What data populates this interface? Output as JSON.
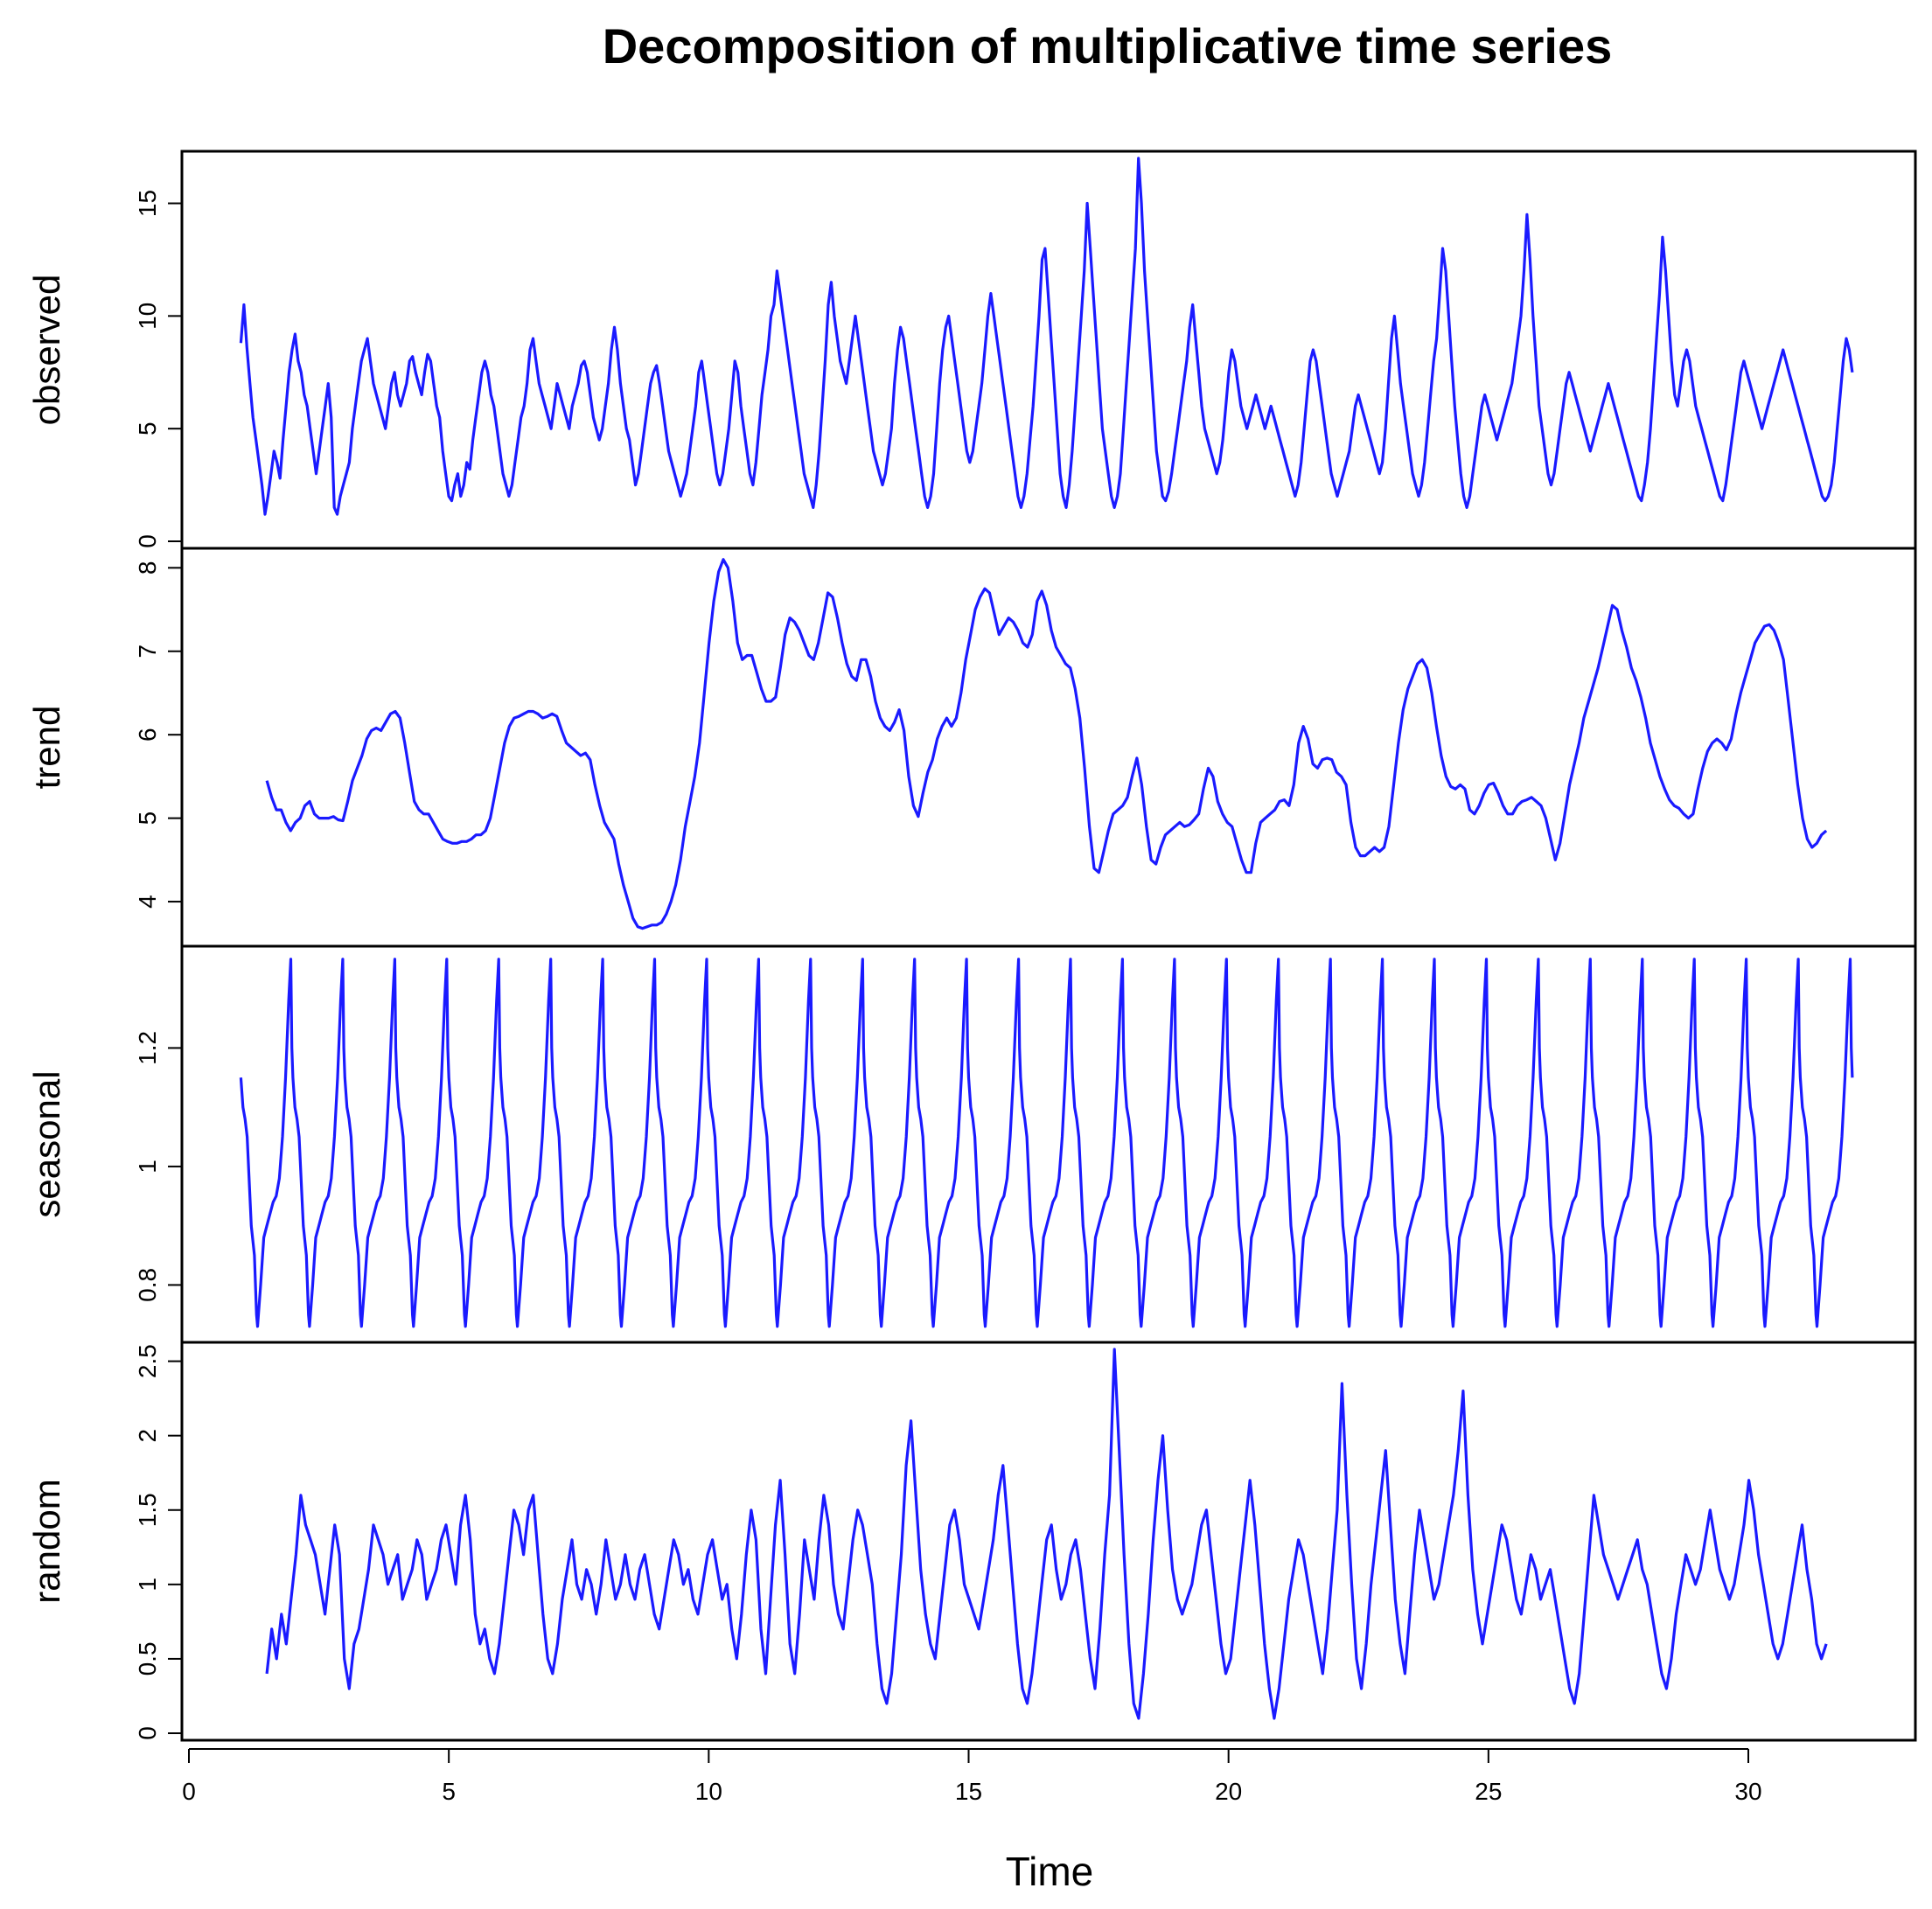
{
  "chart_data": {
    "type": "line",
    "title": "Decomposition of multiplicative time series",
    "xlabel": "Time",
    "xlim": [
      0,
      32
    ],
    "x_ticks": [
      0,
      5,
      10,
      15,
      20,
      25,
      30
    ],
    "line_color": "#1a1aff",
    "panels": [
      {
        "name": "observed",
        "ylabel": "observed",
        "ylim": [
          0,
          17
        ],
        "y_ticks": [
          0,
          5,
          10,
          15
        ],
        "x_start": 1.0,
        "x_end": 32.0,
        "step": 0.05,
        "values": [
          8.8,
          10.5,
          8.6,
          7,
          5.5,
          4.5,
          3.5,
          2.5,
          1.2,
          2,
          3,
          4,
          3.5,
          2.8,
          4.5,
          6,
          7.5,
          8.5,
          9.2,
          8,
          7.5,
          6.5,
          6,
          5,
          4,
          3,
          4,
          5,
          6,
          7,
          5.5,
          1.5,
          1.2,
          2,
          2.5,
          3,
          3.5,
          5,
          6,
          7,
          8,
          8.5,
          9,
          8,
          7,
          6.5,
          6,
          5.5,
          5,
          6,
          7,
          7.5,
          6.5,
          6,
          6.5,
          7,
          8,
          8.2,
          7.5,
          7,
          6.5,
          7.5,
          8.3,
          8,
          7,
          6,
          5.5,
          4,
          3,
          2,
          1.8,
          2.5,
          3,
          2,
          2.5,
          3.5,
          3.2,
          4.5,
          5.5,
          6.5,
          7.5,
          8,
          7.5,
          6.5,
          6,
          5,
          4,
          3,
          2.5,
          2,
          2.5,
          3.5,
          4.5,
          5.5,
          6,
          7,
          8.5,
          9,
          8,
          7,
          6.5,
          6,
          5.5,
          5,
          6,
          7,
          6.5,
          6,
          5.5,
          5,
          6,
          6.5,
          7,
          7.8,
          8,
          7.5,
          6.5,
          5.5,
          5,
          4.5,
          5,
          6,
          7,
          8.5,
          9.5,
          8.5,
          7,
          6,
          5,
          4.5,
          3.5,
          2.5,
          3,
          4,
          5,
          6,
          7,
          7.5,
          7.8,
          7,
          6,
          5,
          4,
          3.5,
          3,
          2.5,
          2,
          2.5,
          3,
          4,
          5,
          6,
          7.5,
          8,
          7,
          6,
          5,
          4,
          3,
          2.5,
          3,
          4,
          5,
          6.5,
          8,
          7.5,
          6,
          5,
          4,
          3,
          2.5,
          3.5,
          5,
          6.5,
          7.5,
          8.5,
          10,
          10.5,
          12,
          11,
          10,
          9,
          8,
          7,
          6,
          5,
          4,
          3,
          2.5,
          2,
          1.5,
          2.5,
          4,
          6,
          8,
          10.5,
          11.5,
          10,
          9,
          8,
          7.5,
          7,
          8,
          9,
          10,
          9,
          8,
          7,
          6,
          5,
          4,
          3.5,
          3,
          2.5,
          3,
          4,
          5,
          7,
          8.5,
          9.5,
          9,
          8,
          7,
          6,
          5,
          4,
          3,
          2,
          1.5,
          2,
          3,
          5,
          7,
          8.5,
          9.5,
          10,
          9,
          8,
          7,
          6,
          5,
          4,
          3.5,
          4,
          5,
          6,
          7,
          8.5,
          10,
          11,
          10,
          9,
          8,
          7,
          6,
          5,
          4,
          3,
          2,
          1.5,
          2,
          3,
          4.5,
          6,
          8,
          10,
          12.5,
          13,
          11,
          9,
          7,
          5,
          3,
          2,
          1.5,
          2.5,
          4,
          6,
          8,
          10,
          12,
          15,
          13,
          11,
          9,
          7,
          5,
          4,
          3,
          2,
          1.5,
          2,
          3,
          5,
          7,
          9,
          11,
          13,
          17,
          15,
          12,
          10,
          8,
          6,
          4,
          3,
          2,
          1.8,
          2.2,
          3,
          4,
          5,
          6,
          7,
          8,
          9.5,
          10.5,
          9,
          7.5,
          6,
          5,
          4.5,
          4,
          3.5,
          3,
          3.5,
          4.5,
          6,
          7.5,
          8.5,
          8,
          7,
          6,
          5.5,
          5,
          5.5,
          6,
          6.5,
          6,
          5.5,
          5,
          5.5,
          6,
          5.5,
          5,
          4.5,
          4,
          3.5,
          3,
          2.5,
          2,
          2.5,
          3.5,
          5,
          6.5,
          8,
          8.5,
          8,
          7,
          6,
          5,
          4,
          3,
          2.5,
          2,
          2.5,
          3,
          3.5,
          4,
          5,
          6,
          6.5,
          6,
          5.5,
          5,
          4.5,
          4,
          3.5,
          3,
          3.5,
          5,
          7,
          9,
          10,
          8.5,
          7,
          6,
          5,
          4,
          3,
          2.5,
          2,
          2.5,
          3.5,
          5,
          6.5,
          8,
          9,
          11,
          13,
          12,
          10,
          8,
          6,
          4.5,
          3,
          2,
          1.5,
          2,
          3,
          4,
          5,
          6,
          6.5,
          6,
          5.5,
          5,
          4.5,
          5,
          5.5,
          6,
          6.5,
          7,
          8,
          9,
          10,
          12,
          14.5,
          12.5,
          10,
          8,
          6,
          5,
          4,
          3,
          2.5,
          3,
          4,
          5,
          6,
          7,
          7.5,
          7,
          6.5,
          6,
          5.5,
          5,
          4.5,
          4,
          4.5,
          5,
          5.5,
          6,
          6.5,
          7,
          6.5,
          6,
          5.5,
          5,
          4.5,
          4,
          3.5,
          3,
          2.5,
          2,
          1.8,
          2.5,
          3.5,
          5,
          7,
          9,
          11,
          13.5,
          12,
          10,
          8,
          6.5,
          6,
          7,
          8,
          8.5,
          8,
          7,
          6,
          5.5,
          5,
          4.5,
          4,
          3.5,
          3,
          2.5,
          2,
          1.8,
          2.5,
          3.5,
          4.5,
          5.5,
          6.5,
          7.5,
          8,
          7.5,
          7,
          6.5,
          6,
          5.5,
          5,
          5.5,
          6,
          6.5,
          7,
          7.5,
          8,
          8.5,
          8,
          7.5,
          7,
          6.5,
          6,
          5.5,
          5,
          4.5,
          4,
          3.5,
          3,
          2.5,
          2,
          1.8,
          2,
          2.5,
          3.5,
          5,
          6.5,
          8,
          9,
          8.5,
          7.5
        ]
      },
      {
        "name": "trend",
        "ylabel": "trend",
        "ylim": [
          3.55,
          8.15
        ],
        "y_ticks": [
          4,
          5,
          6,
          7,
          8
        ],
        "x_start": 1.5,
        "x_end": 31.5,
        "step": 0.1,
        "values": [
          5.45,
          5.25,
          5.1,
          5.1,
          4.95,
          4.85,
          4.95,
          5,
          5.15,
          5.2,
          5.05,
          5,
          5,
          5,
          5.02,
          4.98,
          4.97,
          5.2,
          5.45,
          5.6,
          5.75,
          5.95,
          6.05,
          6.08,
          6.05,
          6.15,
          6.25,
          6.28,
          6.2,
          5.9,
          5.55,
          5.2,
          5.1,
          5.05,
          5.05,
          4.95,
          4.85,
          4.75,
          4.72,
          4.7,
          4.7,
          4.72,
          4.72,
          4.75,
          4.8,
          4.8,
          4.85,
          5,
          5.3,
          5.6,
          5.9,
          6.1,
          6.2,
          6.22,
          6.25,
          6.28,
          6.28,
          6.25,
          6.2,
          6.22,
          6.25,
          6.22,
          6.05,
          5.9,
          5.85,
          5.8,
          5.75,
          5.78,
          5.7,
          5.4,
          5.15,
          4.95,
          4.85,
          4.75,
          4.45,
          4.2,
          4,
          3.8,
          3.7,
          3.68,
          3.7,
          3.72,
          3.72,
          3.75,
          3.85,
          4,
          4.2,
          4.5,
          4.9,
          5.2,
          5.5,
          5.9,
          6.5,
          7.1,
          7.6,
          7.95,
          8.1,
          8,
          7.6,
          7.1,
          6.9,
          6.95,
          6.95,
          6.75,
          6.55,
          6.4,
          6.4,
          6.45,
          6.8,
          7.2,
          7.4,
          7.35,
          7.25,
          7.1,
          6.95,
          6.9,
          7.1,
          7.4,
          7.7,
          7.65,
          7.4,
          7.1,
          6.85,
          6.7,
          6.65,
          6.9,
          6.9,
          6.7,
          6.4,
          6.2,
          6.1,
          6.05,
          6.15,
          6.3,
          6.05,
          5.5,
          5.15,
          5.02,
          5.3,
          5.55,
          5.7,
          5.95,
          6.1,
          6.2,
          6.1,
          6.2,
          6.5,
          6.9,
          7.2,
          7.5,
          7.65,
          7.75,
          7.7,
          7.45,
          7.2,
          7.3,
          7.4,
          7.35,
          7.25,
          7.1,
          7.05,
          7.2,
          7.6,
          7.72,
          7.55,
          7.25,
          7.05,
          6.95,
          6.85,
          6.8,
          6.55,
          6.2,
          5.6,
          4.9,
          4.4,
          4.35,
          4.6,
          4.85,
          5.05,
          5.1,
          5.15,
          5.25,
          5.5,
          5.72,
          5.4,
          4.9,
          4.5,
          4.45,
          4.65,
          4.8,
          4.85,
          4.9,
          4.95,
          4.9,
          4.92,
          4.98,
          5.05,
          5.35,
          5.6,
          5.5,
          5.2,
          5.05,
          4.95,
          4.9,
          4.7,
          4.5,
          4.35,
          4.35,
          4.7,
          4.95,
          5,
          5.05,
          5.1,
          5.2,
          5.22,
          5.15,
          5.4,
          5.9,
          6.1,
          5.95,
          5.65,
          5.6,
          5.7,
          5.72,
          5.7,
          5.55,
          5.5,
          5.4,
          4.95,
          4.65,
          4.55,
          4.55,
          4.6,
          4.65,
          4.6,
          4.65,
          4.9,
          5.4,
          5.9,
          6.3,
          6.55,
          6.7,
          6.85,
          6.9,
          6.8,
          6.5,
          6.1,
          5.75,
          5.5,
          5.38,
          5.35,
          5.4,
          5.35,
          5.1,
          5.05,
          5.15,
          5.3,
          5.4,
          5.42,
          5.3,
          5.15,
          5.05,
          5.05,
          5.15,
          5.2,
          5.22,
          5.25,
          5.2,
          5.15,
          5,
          4.75,
          4.5,
          4.7,
          5.05,
          5.4,
          5.65,
          5.9,
          6.2,
          6.4,
          6.6,
          6.8,
          7.05,
          7.3,
          7.55,
          7.5,
          7.25,
          7.05,
          6.8,
          6.65,
          6.45,
          6.2,
          5.9,
          5.7,
          5.5,
          5.35,
          5.22,
          5.15,
          5.12,
          5.05,
          5,
          5.05,
          5.35,
          5.6,
          5.8,
          5.9,
          5.95,
          5.9,
          5.82,
          5.95,
          6.25,
          6.5,
          6.7,
          6.9,
          7.1,
          7.2,
          7.3,
          7.32,
          7.25,
          7.1,
          6.9,
          6.4,
          5.9,
          5.4,
          5,
          4.75,
          4.65,
          4.7,
          4.8,
          4.85
        ]
      },
      {
        "name": "seasonal",
        "ylabel": "seasonal",
        "ylim": [
          0.715,
          1.36
        ],
        "y_ticks": [
          0.8,
          1.0,
          1.2
        ],
        "x_start": 1.0,
        "x_end": 32.0,
        "step": 1.0,
        "season_profile": [
          1.15,
          1.1,
          1.08,
          1.05,
          0.9,
          0.85,
          0.75,
          0.73,
          0.8,
          0.88,
          0.9,
          0.92,
          0.94,
          0.95,
          0.98,
          1.05,
          1.15,
          1.28,
          1.35,
          1.2,
          1.15
        ],
        "season_x": [
          0,
          0.04,
          0.08,
          0.12,
          0.2,
          0.26,
          0.3,
          0.32,
          0.38,
          0.44,
          0.5,
          0.56,
          0.62,
          0.68,
          0.74,
          0.8,
          0.86,
          0.92,
          0.96,
          0.98,
          1.0
        ]
      },
      {
        "name": "random",
        "ylabel": "random",
        "ylim": [
          0,
          2.58
        ],
        "y_ticks": [
          0.0,
          0.5,
          1.0,
          1.5,
          2.0,
          2.5
        ],
        "x_start": 1.5,
        "x_end": 31.5,
        "step": 0.05,
        "values": [
          0.4,
          0.7,
          0.5,
          0.8,
          0.6,
          0.9,
          1.2,
          1.6,
          1.4,
          1.3,
          1.2,
          1.0,
          0.8,
          1.1,
          1.4,
          1.2,
          0.5,
          0.3,
          0.6,
          0.7,
          0.9,
          1.1,
          1.4,
          1.3,
          1.2,
          1.0,
          1.1,
          1.2,
          0.9,
          1.0,
          1.1,
          1.3,
          1.2,
          0.9,
          1.0,
          1.1,
          1.3,
          1.4,
          1.2,
          1.0,
          1.4,
          1.6,
          1.3,
          0.8,
          0.6,
          0.7,
          0.5,
          0.4,
          0.6,
          0.9,
          1.2,
          1.5,
          1.4,
          1.2,
          1.5,
          1.6,
          1.2,
          0.8,
          0.5,
          0.4,
          0.6,
          0.9,
          1.1,
          1.3,
          1.0,
          0.9,
          1.1,
          1.0,
          0.8,
          1.0,
          1.3,
          1.1,
          0.9,
          1.0,
          1.2,
          1.0,
          0.9,
          1.1,
          1.2,
          1.0,
          0.8,
          0.7,
          0.9,
          1.1,
          1.3,
          1.2,
          1.0,
          1.1,
          0.9,
          0.8,
          1.0,
          1.2,
          1.3,
          1.1,
          0.9,
          1.0,
          0.7,
          0.5,
          0.8,
          1.2,
          1.5,
          1.3,
          0.7,
          0.4,
          0.9,
          1.4,
          1.7,
          1.2,
          0.6,
          0.4,
          0.8,
          1.3,
          1.1,
          0.9,
          1.3,
          1.6,
          1.4,
          1.0,
          0.8,
          0.7,
          1.0,
          1.3,
          1.5,
          1.4,
          1.2,
          1.0,
          0.6,
          0.3,
          0.2,
          0.4,
          0.8,
          1.2,
          1.8,
          2.1,
          1.6,
          1.1,
          0.8,
          0.6,
          0.5,
          0.8,
          1.1,
          1.4,
          1.5,
          1.3,
          1.0,
          0.9,
          0.8,
          0.7,
          0.9,
          1.1,
          1.3,
          1.6,
          1.8,
          1.4,
          1.0,
          0.6,
          0.3,
          0.2,
          0.4,
          0.7,
          1.0,
          1.3,
          1.4,
          1.1,
          0.9,
          1.0,
          1.2,
          1.3,
          1.1,
          0.8,
          0.5,
          0.3,
          0.7,
          1.2,
          1.6,
          2.58,
          1.9,
          1.2,
          0.6,
          0.2,
          0.1,
          0.4,
          0.8,
          1.3,
          1.7,
          2.0,
          1.5,
          1.1,
          0.9,
          0.8,
          0.9,
          1.0,
          1.2,
          1.4,
          1.5,
          1.2,
          0.9,
          0.6,
          0.4,
          0.5,
          0.8,
          1.1,
          1.4,
          1.7,
          1.4,
          1.0,
          0.6,
          0.3,
          0.1,
          0.3,
          0.6,
          0.9,
          1.1,
          1.3,
          1.2,
          1.0,
          0.8,
          0.6,
          0.4,
          0.7,
          1.1,
          1.5,
          2.35,
          1.6,
          1.0,
          0.5,
          0.3,
          0.6,
          1.0,
          1.3,
          1.6,
          1.9,
          1.4,
          0.9,
          0.6,
          0.4,
          0.8,
          1.2,
          1.5,
          1.3,
          1.1,
          0.9,
          1.0,
          1.2,
          1.4,
          1.6,
          1.9,
          2.3,
          1.6,
          1.1,
          0.8,
          0.6,
          0.8,
          1.0,
          1.2,
          1.4,
          1.3,
          1.1,
          0.9,
          0.8,
          1.0,
          1.2,
          1.1,
          0.9,
          1.0,
          1.1,
          0.9,
          0.7,
          0.5,
          0.3,
          0.2,
          0.4,
          0.8,
          1.2,
          1.6,
          1.4,
          1.2,
          1.1,
          1.0,
          0.9,
          1.0,
          1.1,
          1.2,
          1.3,
          1.1,
          1.0,
          0.8,
          0.6,
          0.4,
          0.3,
          0.5,
          0.8,
          1.0,
          1.2,
          1.1,
          1.0,
          1.1,
          1.3,
          1.5,
          1.3,
          1.1,
          1.0,
          0.9,
          1.0,
          1.2,
          1.4,
          1.7,
          1.5,
          1.2,
          1.0,
          0.8,
          0.6,
          0.5,
          0.6,
          0.8,
          1.0,
          1.2,
          1.4,
          1.1,
          0.9,
          0.6,
          0.5,
          0.6
        ]
      }
    ]
  }
}
